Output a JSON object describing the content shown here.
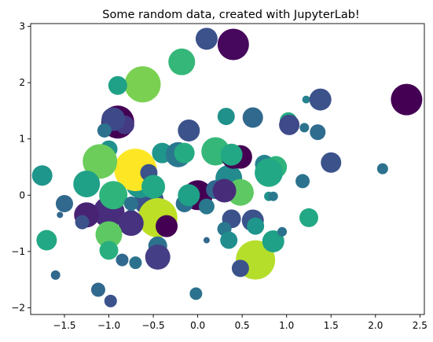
{
  "chart_data": {
    "type": "scatter",
    "title": "Some random data, created with JupyterLab!",
    "xlabel": "",
    "ylabel": "",
    "xlim": [
      -1.88,
      2.55
    ],
    "ylim": [
      -2.12,
      3.05
    ],
    "xticks": [
      -1.5,
      -1.0,
      -0.5,
      0.0,
      0.5,
      1.0,
      1.5,
      2.0,
      2.5
    ],
    "xtick_labels": [
      "−1.5",
      "−1.0",
      "−0.5",
      "0.0",
      "0.5",
      "1.0",
      "1.5",
      "2.0",
      "2.5"
    ],
    "yticks": [
      -2,
      -1,
      0,
      1,
      2,
      3
    ],
    "ytick_labels": [
      "−2",
      "−1",
      "0",
      "1",
      "2",
      "3"
    ],
    "grid": false,
    "legend": "none",
    "points": [
      {
        "x": -0.55,
        "y": -0.1,
        "size": 19,
        "color": "#3b528b"
      },
      {
        "x": 0.35,
        "y": 0.3,
        "size": 17,
        "color": "#238a8d"
      },
      {
        "x": -0.65,
        "y": 0.2,
        "size": 18,
        "color": "#1f968b"
      },
      {
        "x": 0.0,
        "y": 0.0,
        "size": 19,
        "color": "#440154"
      },
      {
        "x": -0.15,
        "y": -0.15,
        "size": 11,
        "color": "#2d708e"
      },
      {
        "x": 0.2,
        "y": 0.1,
        "size": 12,
        "color": "#31688e"
      },
      {
        "x": -1.0,
        "y": -0.3,
        "size": 20,
        "color": "#472d7b"
      },
      {
        "x": -0.7,
        "y": 0.45,
        "size": 27,
        "color": "#fde725"
      },
      {
        "x": -0.45,
        "y": -0.4,
        "size": 25,
        "color": "#bddf26"
      },
      {
        "x": 0.65,
        "y": -1.15,
        "size": 25,
        "color": "#b5de2b"
      },
      {
        "x": -0.62,
        "y": 1.97,
        "size": 23,
        "color": "#7ad151"
      },
      {
        "x": -0.9,
        "y": 1.3,
        "size": 21,
        "color": "#440154"
      },
      {
        "x": 2.35,
        "y": 1.7,
        "size": 20,
        "color": "#440154"
      },
      {
        "x": 0.4,
        "y": 2.68,
        "size": 20,
        "color": "#46085c"
      },
      {
        "x": 0.1,
        "y": 2.78,
        "size": 14,
        "color": "#3b528b"
      },
      {
        "x": -0.18,
        "y": 2.37,
        "size": 17,
        "color": "#35b779"
      },
      {
        "x": -0.9,
        "y": 1.95,
        "size": 12,
        "color": "#1fa187"
      },
      {
        "x": -0.82,
        "y": 1.25,
        "size": 12,
        "color": "#443983"
      },
      {
        "x": -0.95,
        "y": 1.35,
        "size": 15,
        "color": "#3e4989"
      },
      {
        "x": -1.05,
        "y": 1.15,
        "size": 9,
        "color": "#2c728e"
      },
      {
        "x": -0.1,
        "y": 1.15,
        "size": 14,
        "color": "#3b528b"
      },
      {
        "x": 0.32,
        "y": 1.4,
        "size": 11,
        "color": "#21918c"
      },
      {
        "x": 0.62,
        "y": 1.38,
        "size": 13,
        "color": "#31688e"
      },
      {
        "x": 1.02,
        "y": 1.32,
        "size": 11,
        "color": "#25ab82"
      },
      {
        "x": 1.03,
        "y": 1.25,
        "size": 13,
        "color": "#3e4a89"
      },
      {
        "x": 1.2,
        "y": 1.2,
        "size": 6,
        "color": "#2c728e"
      },
      {
        "x": 1.22,
        "y": 1.7,
        "size": 5,
        "color": "#26828e"
      },
      {
        "x": 1.38,
        "y": 1.7,
        "size": 14,
        "color": "#3b528b"
      },
      {
        "x": 1.35,
        "y": 1.12,
        "size": 10,
        "color": "#2f6c8e"
      },
      {
        "x": 1.5,
        "y": 0.58,
        "size": 13,
        "color": "#3b528b"
      },
      {
        "x": 2.08,
        "y": 0.47,
        "size": 7,
        "color": "#2c728e"
      },
      {
        "x": -1.0,
        "y": 0.82,
        "size": 11,
        "color": "#21918c"
      },
      {
        "x": -1.1,
        "y": 0.6,
        "size": 22,
        "color": "#6ccd5a"
      },
      {
        "x": -1.75,
        "y": 0.35,
        "size": 13,
        "color": "#1f968b"
      },
      {
        "x": -1.25,
        "y": 0.2,
        "size": 17,
        "color": "#1fa187"
      },
      {
        "x": -0.95,
        "y": 0.0,
        "size": 18,
        "color": "#2fb47c"
      },
      {
        "x": -1.5,
        "y": -0.15,
        "size": 11,
        "color": "#31688e"
      },
      {
        "x": -1.55,
        "y": -0.35,
        "size": 4,
        "color": "#31688e"
      },
      {
        "x": -1.25,
        "y": -0.35,
        "size": 16,
        "color": "#482374"
      },
      {
        "x": -1.3,
        "y": -0.48,
        "size": 9,
        "color": "#3b528b"
      },
      {
        "x": -0.75,
        "y": -0.4,
        "size": 10,
        "color": "#3b528b"
      },
      {
        "x": -0.75,
        "y": -0.5,
        "size": 16,
        "color": "#46327e"
      },
      {
        "x": -0.35,
        "y": -0.55,
        "size": 14,
        "color": "#440154"
      },
      {
        "x": -0.55,
        "y": 0.4,
        "size": 11,
        "color": "#3b528b"
      },
      {
        "x": -0.4,
        "y": 0.75,
        "size": 13,
        "color": "#1f968b"
      },
      {
        "x": -0.22,
        "y": 0.72,
        "size": 16,
        "color": "#2a788e"
      },
      {
        "x": -0.15,
        "y": 0.75,
        "size": 13,
        "color": "#25ab82"
      },
      {
        "x": 0.2,
        "y": 0.78,
        "size": 18,
        "color": "#35b779"
      },
      {
        "x": 0.4,
        "y": 0.68,
        "size": 15,
        "color": "#440154"
      },
      {
        "x": 0.48,
        "y": 0.68,
        "size": 15,
        "color": "#440154"
      },
      {
        "x": 0.38,
        "y": 0.72,
        "size": 14,
        "color": "#22a884"
      },
      {
        "x": 0.75,
        "y": 0.55,
        "size": 12,
        "color": "#26828e"
      },
      {
        "x": 0.88,
        "y": 0.5,
        "size": 14,
        "color": "#2fb47c"
      },
      {
        "x": 0.8,
        "y": 0.4,
        "size": 18,
        "color": "#22a884"
      },
      {
        "x": 0.48,
        "y": 0.05,
        "size": 17,
        "color": "#5ec962"
      },
      {
        "x": 0.3,
        "y": 0.08,
        "size": 15,
        "color": "#472c7a"
      },
      {
        "x": 0.8,
        "y": -0.02,
        "size": 6,
        "color": "#21918c"
      },
      {
        "x": 0.85,
        "y": -0.02,
        "size": 6,
        "color": "#2a788e"
      },
      {
        "x": 1.18,
        "y": 0.25,
        "size": 9,
        "color": "#2c728e"
      },
      {
        "x": -0.5,
        "y": 0.15,
        "size": 15,
        "color": "#22a884"
      },
      {
        "x": -0.75,
        "y": -0.15,
        "size": 9,
        "color": "#2c728e"
      },
      {
        "x": -0.1,
        "y": 0.0,
        "size": 14,
        "color": "#1fa187"
      },
      {
        "x": 0.1,
        "y": -0.2,
        "size": 10,
        "color": "#2a788e"
      },
      {
        "x": 0.38,
        "y": -0.42,
        "size": 12,
        "color": "#3b528b"
      },
      {
        "x": 0.62,
        "y": -0.45,
        "size": 14,
        "color": "#3b528b"
      },
      {
        "x": 0.65,
        "y": -0.55,
        "size": 11,
        "color": "#1f968b"
      },
      {
        "x": 0.3,
        "y": -0.6,
        "size": 9,
        "color": "#2a788e"
      },
      {
        "x": 0.35,
        "y": -0.8,
        "size": 11,
        "color": "#218e8d"
      },
      {
        "x": 0.85,
        "y": -0.82,
        "size": 14,
        "color": "#1fa187"
      },
      {
        "x": 0.95,
        "y": -0.65,
        "size": 6,
        "color": "#2c728e"
      },
      {
        "x": 1.25,
        "y": -0.4,
        "size": 12,
        "color": "#22a884"
      },
      {
        "x": -1.0,
        "y": -0.7,
        "size": 17,
        "color": "#5ec962"
      },
      {
        "x": -1.7,
        "y": -0.8,
        "size": 13,
        "color": "#22a884"
      },
      {
        "x": -1.0,
        "y": -0.98,
        "size": 12,
        "color": "#29af7f"
      },
      {
        "x": -0.45,
        "y": -0.9,
        "size": 12,
        "color": "#2c728e"
      },
      {
        "x": -0.45,
        "y": -1.1,
        "size": 16,
        "color": "#433e85"
      },
      {
        "x": -0.85,
        "y": -1.15,
        "size": 8,
        "color": "#31688e"
      },
      {
        "x": -0.7,
        "y": -1.2,
        "size": 8,
        "color": "#2c728e"
      },
      {
        "x": 0.1,
        "y": -0.8,
        "size": 4,
        "color": "#31688e"
      },
      {
        "x": 0.48,
        "y": -1.3,
        "size": 11,
        "color": "#3b528b"
      },
      {
        "x": -1.6,
        "y": -1.42,
        "size": 6,
        "color": "#31688e"
      },
      {
        "x": -1.12,
        "y": -1.68,
        "size": 9,
        "color": "#31688e"
      },
      {
        "x": -0.98,
        "y": -1.88,
        "size": 8,
        "color": "#3b528b"
      },
      {
        "x": -0.02,
        "y": -1.75,
        "size": 8,
        "color": "#2c728e"
      }
    ]
  }
}
